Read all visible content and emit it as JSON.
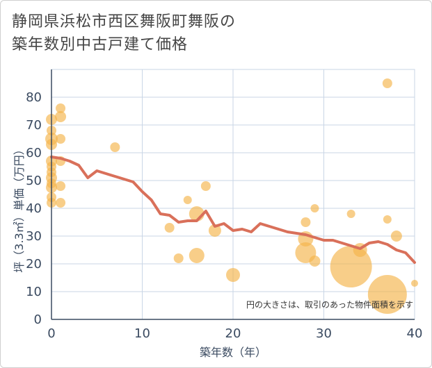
{
  "title_lines": [
    "静岡県浜松市西区舞阪町舞阪の",
    "築年数別中古戸建て価格"
  ],
  "chart_data": {
    "type": "scatter",
    "title": "静岡県浜松市西区舞阪町舞阪の築年数別中古戸建て価格",
    "xlabel": "築年数（年）",
    "ylabel": "坪（3.3㎡）単価（万円）",
    "xlim": [
      0,
      40
    ],
    "ylim": [
      0,
      90
    ],
    "xticks": [
      0,
      10,
      20,
      30,
      40
    ],
    "yticks": [
      0,
      10,
      20,
      30,
      40,
      50,
      60,
      70,
      80
    ],
    "grid": true,
    "note": "円の大きさは、取引のあった物件面積を示す",
    "colors": {
      "bubble": "#f4b34a",
      "line": "#d9705a",
      "grid": "#c9d6e6",
      "axis": "#3a4a60"
    },
    "trend_line": {
      "x": [
        0,
        1,
        2,
        3,
        4,
        5,
        6,
        7,
        8,
        9,
        10,
        11,
        12,
        13,
        14,
        15,
        16,
        17,
        18,
        19,
        20,
        21,
        22,
        23,
        24,
        25,
        26,
        27,
        28,
        29,
        30,
        31,
        32,
        33,
        34,
        35,
        36,
        37,
        38,
        39,
        40
      ],
      "y": [
        58.5,
        58,
        57,
        55.5,
        51,
        53.5,
        52.5,
        51.5,
        50.5,
        49.5,
        46,
        43,
        38,
        37.5,
        35,
        35.5,
        35.5,
        39,
        33.5,
        34.5,
        32,
        32.5,
        31.5,
        34.5,
        33.5,
        32.5,
        31.5,
        31,
        30.5,
        29.5,
        28.5,
        28.5,
        27.5,
        26.5,
        25.5,
        27.5,
        28,
        27,
        25,
        24,
        20.5
      ]
    },
    "points": [
      {
        "x": 0,
        "y": 72,
        "size": 8
      },
      {
        "x": 0,
        "y": 68,
        "size": 7
      },
      {
        "x": 0,
        "y": 65,
        "size": 9
      },
      {
        "x": 0,
        "y": 63,
        "size": 8
      },
      {
        "x": 0,
        "y": 57,
        "size": 8
      },
      {
        "x": 0,
        "y": 55,
        "size": 7
      },
      {
        "x": 0,
        "y": 53,
        "size": 7
      },
      {
        "x": 0,
        "y": 51,
        "size": 8
      },
      {
        "x": 0,
        "y": 49,
        "size": 7
      },
      {
        "x": 0,
        "y": 47.5,
        "size": 8
      },
      {
        "x": 0,
        "y": 44,
        "size": 7
      },
      {
        "x": 0,
        "y": 42,
        "size": 7
      },
      {
        "x": 1,
        "y": 76,
        "size": 7
      },
      {
        "x": 1,
        "y": 73,
        "size": 8
      },
      {
        "x": 1,
        "y": 65,
        "size": 7
      },
      {
        "x": 1,
        "y": 57,
        "size": 7
      },
      {
        "x": 1,
        "y": 48,
        "size": 7
      },
      {
        "x": 1,
        "y": 42,
        "size": 7
      },
      {
        "x": 7,
        "y": 62,
        "size": 7
      },
      {
        "x": 13,
        "y": 33,
        "size": 7
      },
      {
        "x": 14,
        "y": 22,
        "size": 7
      },
      {
        "x": 15,
        "y": 43,
        "size": 6
      },
      {
        "x": 16,
        "y": 38,
        "size": 11
      },
      {
        "x": 16,
        "y": 23,
        "size": 11
      },
      {
        "x": 17,
        "y": 48,
        "size": 7
      },
      {
        "x": 18,
        "y": 32,
        "size": 9
      },
      {
        "x": 20,
        "y": 16,
        "size": 10
      },
      {
        "x": 28,
        "y": 35,
        "size": 7
      },
      {
        "x": 28,
        "y": 29,
        "size": 11
      },
      {
        "x": 28,
        "y": 24,
        "size": 15
      },
      {
        "x": 29,
        "y": 40,
        "size": 6
      },
      {
        "x": 29,
        "y": 21,
        "size": 8
      },
      {
        "x": 33,
        "y": 38,
        "size": 6
      },
      {
        "x": 33,
        "y": 19,
        "size": 30
      },
      {
        "x": 34,
        "y": 25,
        "size": 10
      },
      {
        "x": 37,
        "y": 85,
        "size": 7
      },
      {
        "x": 37,
        "y": 36,
        "size": 6
      },
      {
        "x": 37,
        "y": 9,
        "size": 28
      },
      {
        "x": 38,
        "y": 30,
        "size": 8
      },
      {
        "x": 40,
        "y": 13,
        "size": 5
      }
    ]
  }
}
